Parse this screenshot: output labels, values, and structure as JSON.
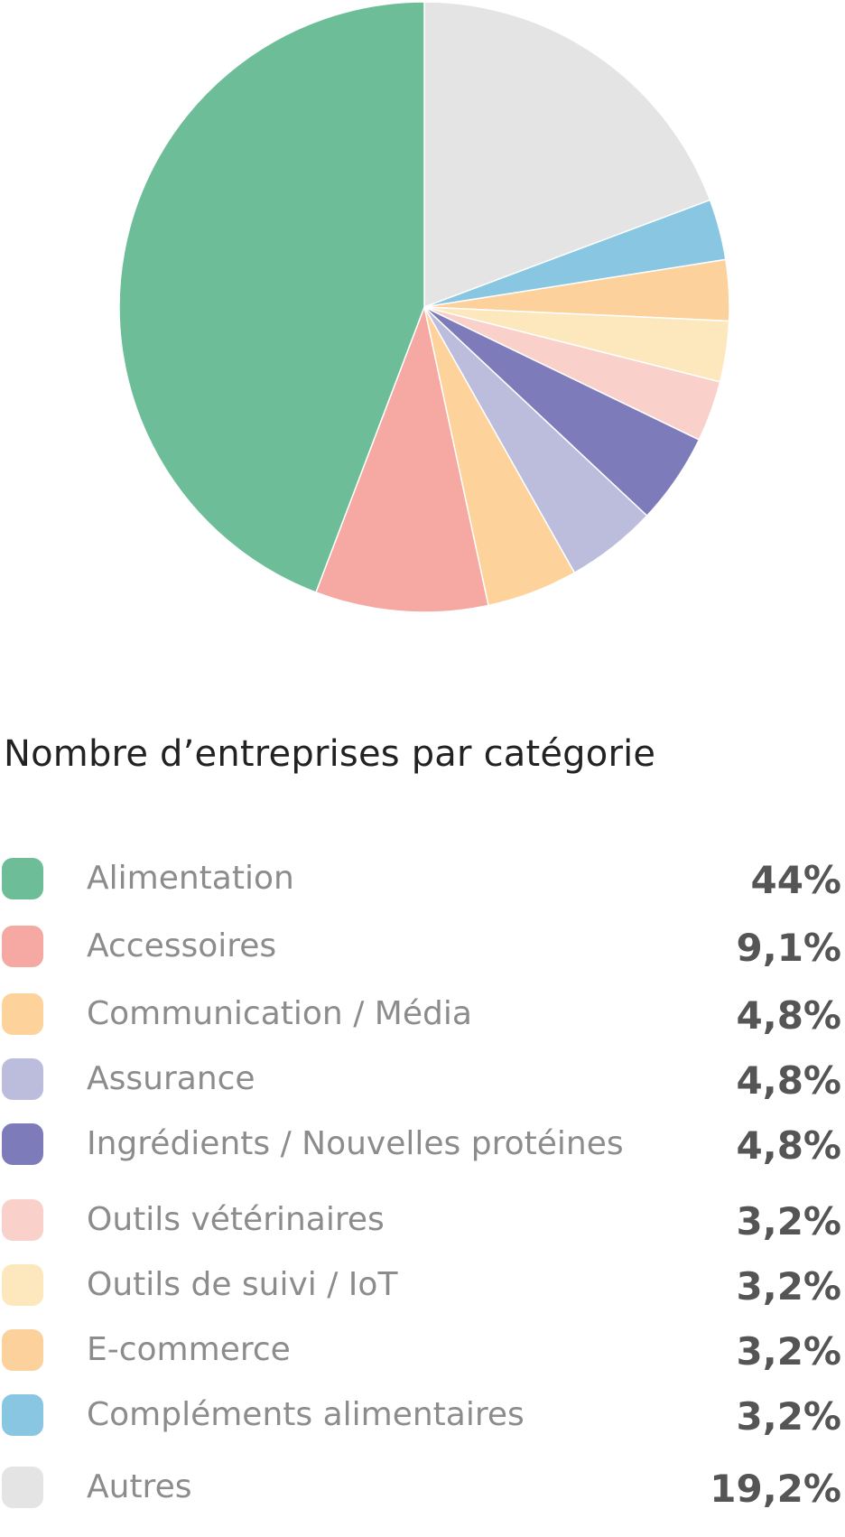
{
  "chart_data": {
    "type": "pie",
    "title": "Nombre d’entreprises par catégorie",
    "start": "12 o'clock, clockwise",
    "slices": [
      {
        "label": "Autres",
        "value": 19.2,
        "display": "19,2%",
        "color": "#e4e4e4"
      },
      {
        "label": "Compléments alimentaires",
        "value": 3.2,
        "display": "3,2%",
        "color": "#89c6e1"
      },
      {
        "label": "E-commerce",
        "value": 3.2,
        "display": "3,2%",
        "color": "#fcd19b"
      },
      {
        "label": "Outils de suivi / IoT",
        "value": 3.2,
        "display": "3,2%",
        "color": "#fde8bd"
      },
      {
        "label": "Outils vétérinaires",
        "value": 3.2,
        "display": "3,2%",
        "color": "#f9d1ca"
      },
      {
        "label": "Ingrédients / Nouvelles protéines",
        "value": 4.8,
        "display": "4,8%",
        "color": "#7e7bbb"
      },
      {
        "label": "Assurance",
        "value": 4.8,
        "display": "4,8%",
        "color": "#bcbcdc"
      },
      {
        "label": "Communication / Média",
        "value": 4.8,
        "display": "4,8%",
        "color": "#fdd39b"
      },
      {
        "label": "Accessoires",
        "value": 9.1,
        "display": "9,1%",
        "color": "#f6a8a3"
      },
      {
        "label": "Alimentation",
        "value": 44,
        "display": "44%",
        "color": "#6cbd98"
      }
    ]
  },
  "legend": [
    {
      "label": "Alimentation",
      "value": "44%",
      "color": "#6cbd98"
    },
    {
      "label": "Accessoires",
      "value": "9,1%",
      "color": "#f6a8a3"
    },
    {
      "label": "Communication / Média",
      "value": "4,8%",
      "color": "#fdd39b"
    },
    {
      "label": "Assurance",
      "value": "4,8%",
      "color": "#bcbcdc"
    },
    {
      "label": "Ingrédients / Nouvelles protéines",
      "value": "4,8%",
      "color": "#7e7bbb"
    },
    {
      "label": "Outils vétérinaires",
      "value": "3,2%",
      "color": "#f9d1ca"
    },
    {
      "label": "Outils de suivi / IoT",
      "value": "3,2%",
      "color": "#fde8bd"
    },
    {
      "label": "E-commerce",
      "value": "3,2%",
      "color": "#fcd19b"
    },
    {
      "label": "Compléments alimentaires",
      "value": "3,2%",
      "color": "#89c6e1"
    },
    {
      "label": "Autres",
      "value": "19,2%",
      "color": "#e4e4e4"
    }
  ]
}
